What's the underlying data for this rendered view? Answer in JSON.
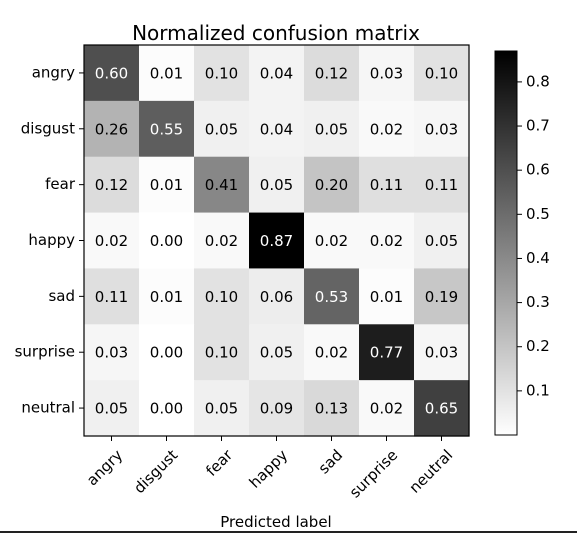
{
  "chart_data": {
    "type": "heatmap",
    "title": "Normalized confusion matrix",
    "xlabel": "Predicted label",
    "ylabel": "",
    "rows": [
      "angry",
      "disgust",
      "fear",
      "happy",
      "sad",
      "surprise",
      "neutral"
    ],
    "columns": [
      "angry",
      "disgust",
      "fear",
      "happy",
      "sad",
      "surprise",
      "neutral"
    ],
    "values": [
      [
        0.6,
        0.01,
        0.1,
        0.04,
        0.12,
        0.03,
        0.1
      ],
      [
        0.26,
        0.55,
        0.05,
        0.04,
        0.05,
        0.02,
        0.03
      ],
      [
        0.12,
        0.01,
        0.41,
        0.05,
        0.2,
        0.11,
        0.11
      ],
      [
        0.02,
        0.0,
        0.02,
        0.87,
        0.02,
        0.02,
        0.05
      ],
      [
        0.11,
        0.01,
        0.1,
        0.06,
        0.53,
        0.01,
        0.19
      ],
      [
        0.03,
        0.0,
        0.1,
        0.05,
        0.02,
        0.77,
        0.03
      ],
      [
        0.05,
        0.0,
        0.05,
        0.09,
        0.13,
        0.02,
        0.65
      ]
    ],
    "colorbar": {
      "min": 0.0,
      "max": 0.87,
      "ticks": [
        0.1,
        0.2,
        0.3,
        0.4,
        0.5,
        0.6,
        0.7,
        0.8
      ],
      "colormap": "greys"
    },
    "grid": false,
    "legend": "colorbar-right"
  }
}
